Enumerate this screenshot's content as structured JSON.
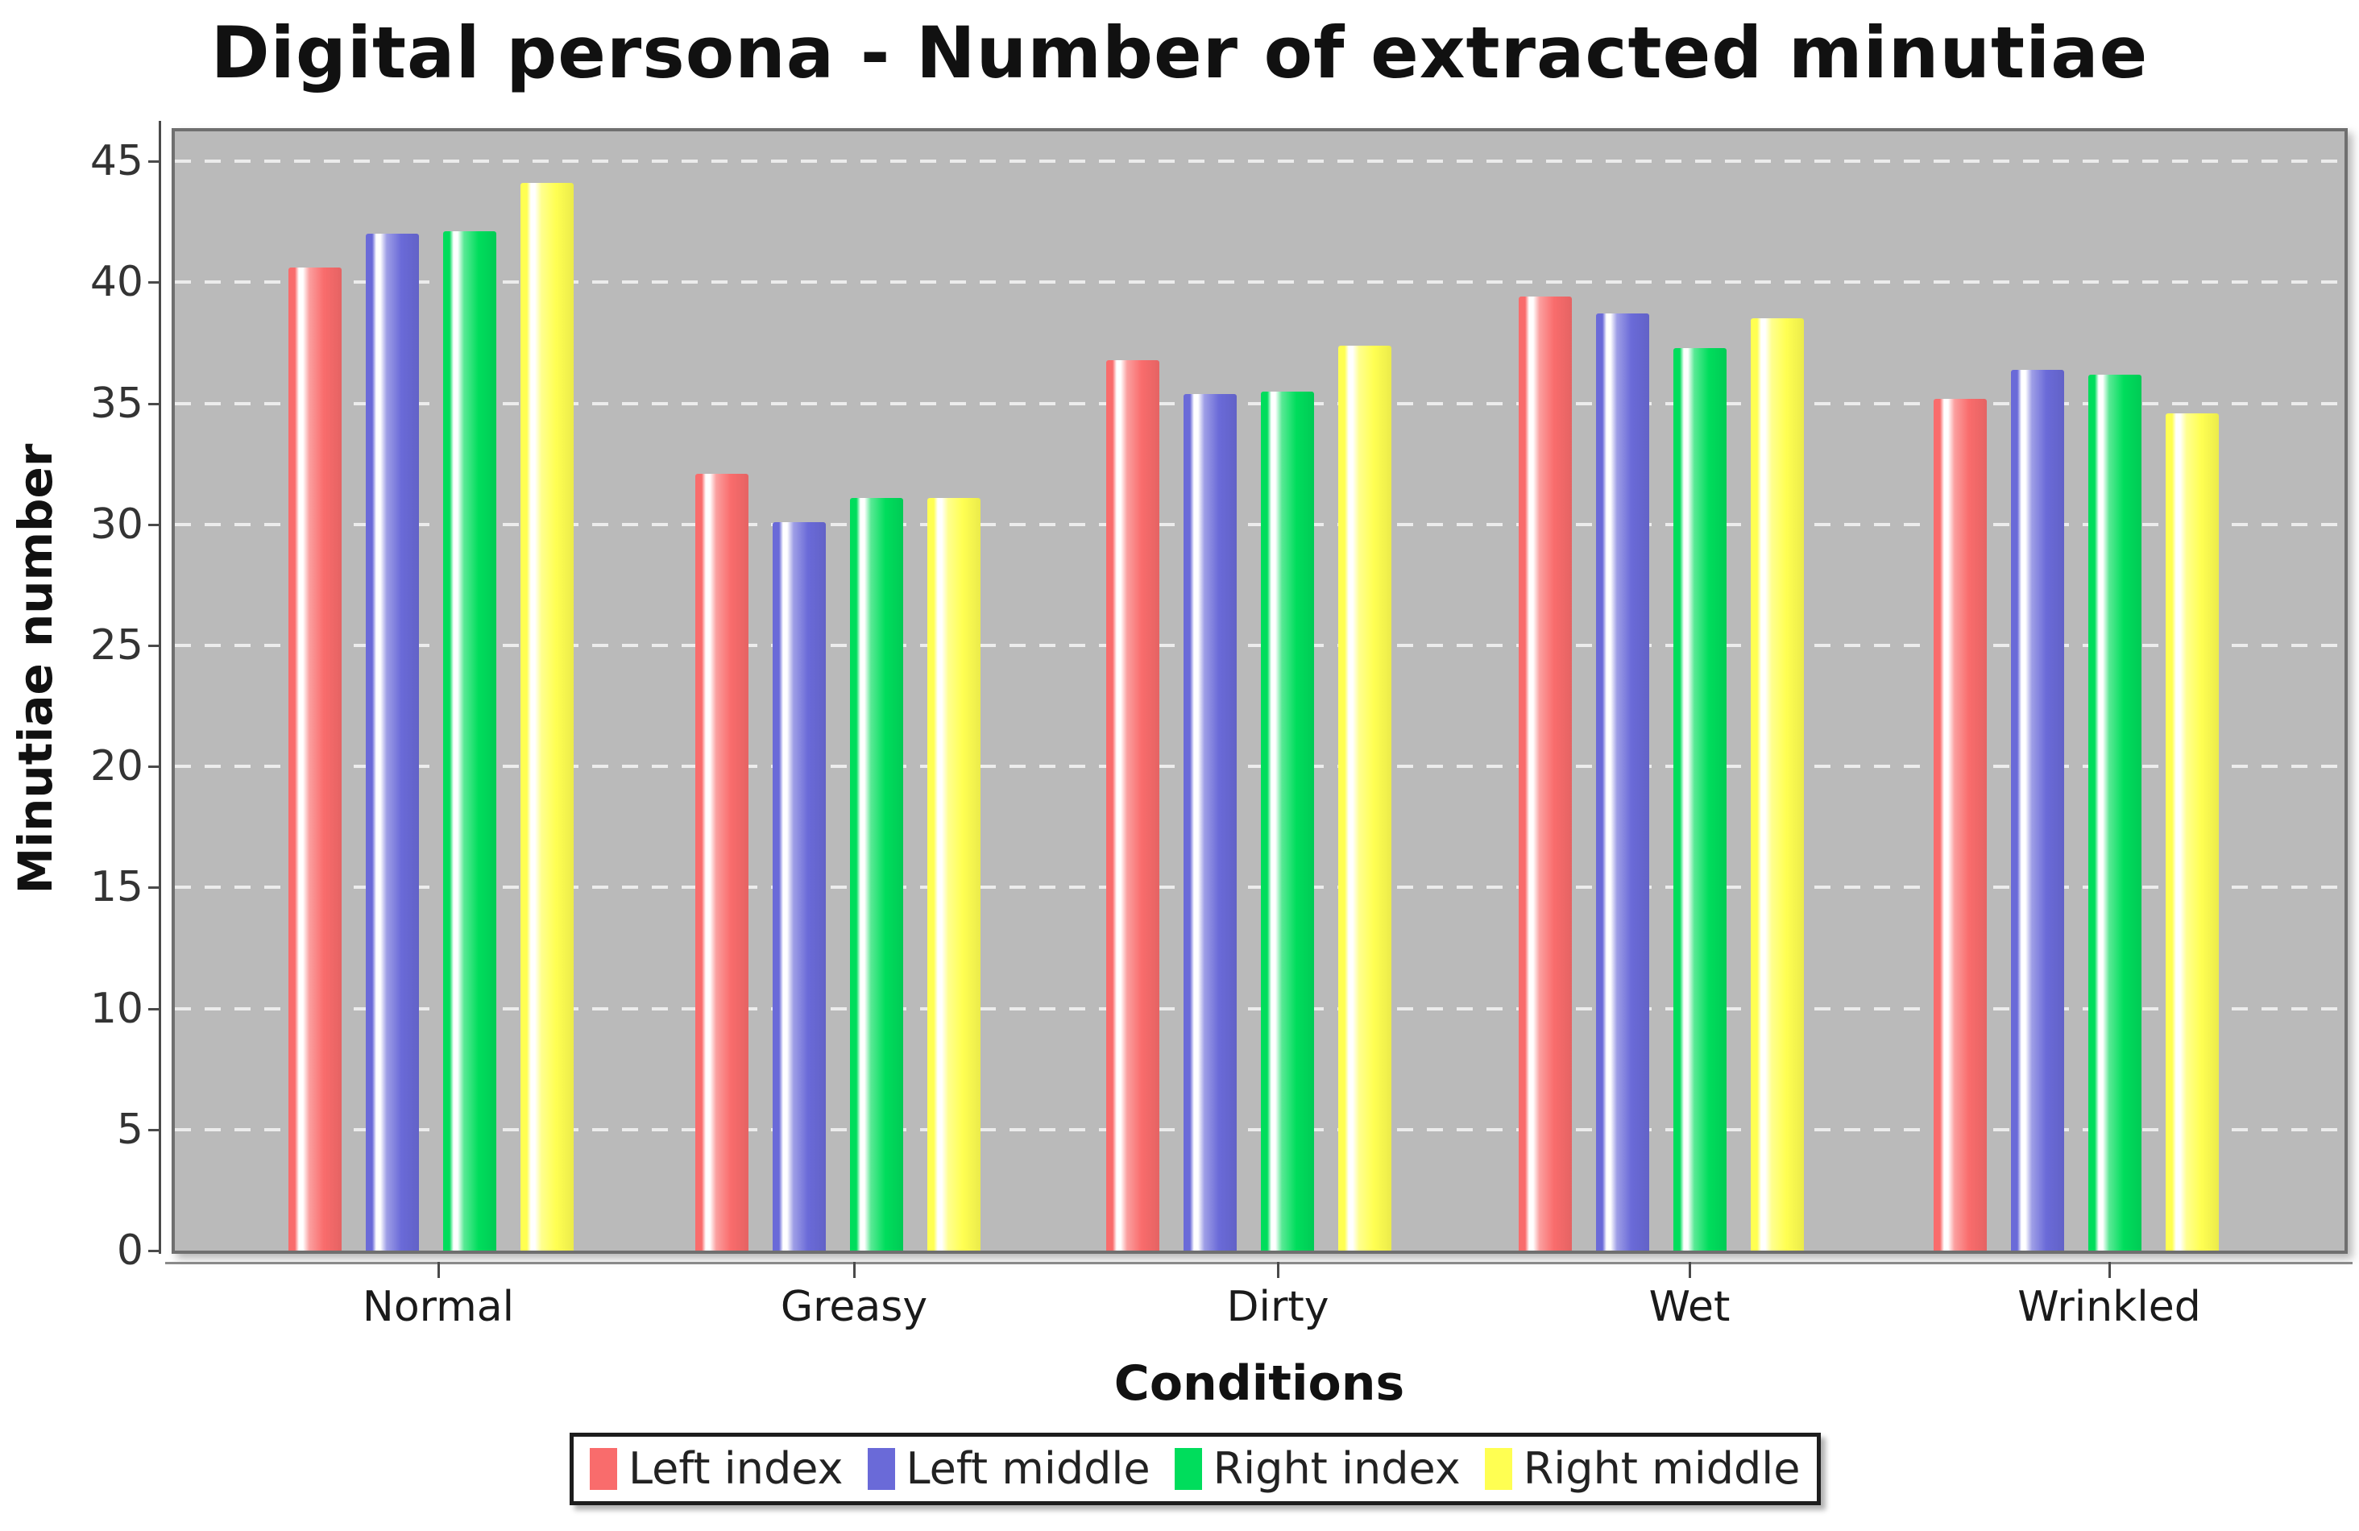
{
  "title": "Digital persona - Number of extracted minutiae",
  "chart_data": {
    "type": "bar",
    "title": "Digital persona - Number of extracted minutiae",
    "xlabel": "Conditions",
    "ylabel": "Minutiae number",
    "categories": [
      "Normal",
      "Greasy",
      "Dirty",
      "Wet",
      "Wrinkled"
    ],
    "series": [
      {
        "name": "Left index",
        "color": "#f96c6c",
        "values": [
          40.6,
          32.1,
          36.8,
          39.4,
          35.2
        ]
      },
      {
        "name": "Left middle",
        "color": "#6a6ad8",
        "values": [
          42.0,
          30.1,
          35.4,
          38.7,
          36.4
        ]
      },
      {
        "name": "Right index",
        "color": "#00dd5c",
        "values": [
          42.1,
          31.1,
          35.5,
          37.3,
          36.2
        ]
      },
      {
        "name": "Right middle",
        "color": "#ffff52",
        "values": [
          44.1,
          31.1,
          37.4,
          38.5,
          34.6
        ]
      }
    ],
    "ylim": [
      0,
      46.2
    ],
    "yticks": [
      0,
      5,
      10,
      15,
      20,
      25,
      30,
      35,
      40,
      45
    ],
    "grid": "horizontal-dashed-white",
    "legend_position": "bottom",
    "colors": {
      "plot_bg": "#bababa",
      "grid": "#ececec",
      "axis": "#4a4a4a",
      "plot_border": "#6f6f6f"
    }
  }
}
